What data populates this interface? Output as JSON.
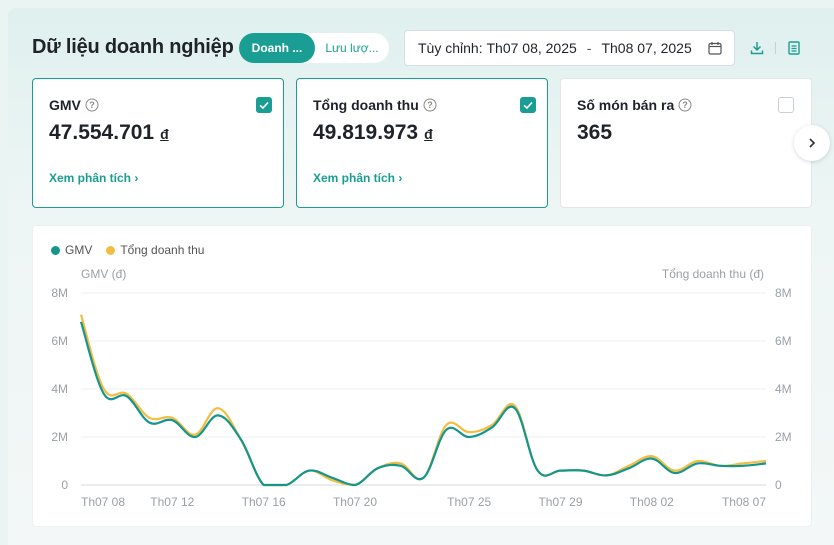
{
  "header": {
    "title": "Dữ liệu doanh nghiệp",
    "tabs": [
      {
        "label": "Doanh ...",
        "active": true
      },
      {
        "label": "Lưu lượ...",
        "active": false
      }
    ],
    "date_range": {
      "prefix": "Tùy chỉnh:",
      "start": "Th07 08, 2025",
      "separator": "-",
      "end": "Th08 07, 2025"
    },
    "icons": [
      "download-icon",
      "report-icon"
    ]
  },
  "cards": [
    {
      "label": "GMV",
      "value": "47.554.701",
      "unit": "đ",
      "link": "Xem phân tích",
      "checked": true
    },
    {
      "label": "Tổng doanh thu",
      "value": "49.819.973",
      "unit": "đ",
      "link": "Xem phân tích",
      "checked": true
    },
    {
      "label": "Số món bán ra",
      "value": "365",
      "unit": "",
      "link": "",
      "checked": false
    }
  ],
  "colors": {
    "accent": "#1a9e93",
    "gmv": "#14968d",
    "revenue": "#f4bc42"
  },
  "chart_data": {
    "type": "line",
    "legend": [
      "GMV",
      "Tổng doanh thu"
    ],
    "ylabel_left": "GMV (đ)",
    "ylabel_right": "Tổng doanh thu (đ)",
    "y_ticks": [
      "0",
      "2M",
      "4M",
      "6M",
      "8M"
    ],
    "ylim": [
      0,
      8000000
    ],
    "x": [
      "Th07 08",
      "Th07 09",
      "Th07 10",
      "Th07 11",
      "Th07 12",
      "Th07 13",
      "Th07 14",
      "Th07 15",
      "Th07 16",
      "Th07 17",
      "Th07 18",
      "Th07 19",
      "Th07 20",
      "Th07 21",
      "Th07 22",
      "Th07 23",
      "Th07 24",
      "Th07 25",
      "Th07 26",
      "Th07 27",
      "Th07 28",
      "Th07 29",
      "Th07 30",
      "Th07 31",
      "Th08 01",
      "Th08 02",
      "Th08 03",
      "Th08 04",
      "Th08 05",
      "Th08 06",
      "Th08 07"
    ],
    "x_tick_labels": [
      "Th07 08",
      "Th07 12",
      "Th07 16",
      "Th07 20",
      "Th07 25",
      "Th07 29",
      "Th08 02",
      "Th08 07"
    ],
    "series": [
      {
        "name": "GMV",
        "values": [
          6800000,
          3800000,
          3700000,
          2600000,
          2700000,
          2000000,
          2900000,
          1900000,
          0,
          0,
          600000,
          300000,
          0,
          700000,
          800000,
          300000,
          2300000,
          2000000,
          2400000,
          3200000,
          600000,
          600000,
          600000,
          400000,
          700000,
          1100000,
          500000,
          900000,
          800000,
          800000,
          900000
        ]
      },
      {
        "name": "Tổng doanh thu",
        "values": [
          7100000,
          4000000,
          3800000,
          2800000,
          2800000,
          2100000,
          3200000,
          1900000,
          0,
          0,
          600000,
          200000,
          0,
          700000,
          900000,
          300000,
          2500000,
          2200000,
          2500000,
          3300000,
          600000,
          600000,
          600000,
          400000,
          800000,
          1200000,
          600000,
          1000000,
          800000,
          900000,
          1000000
        ]
      }
    ]
  }
}
